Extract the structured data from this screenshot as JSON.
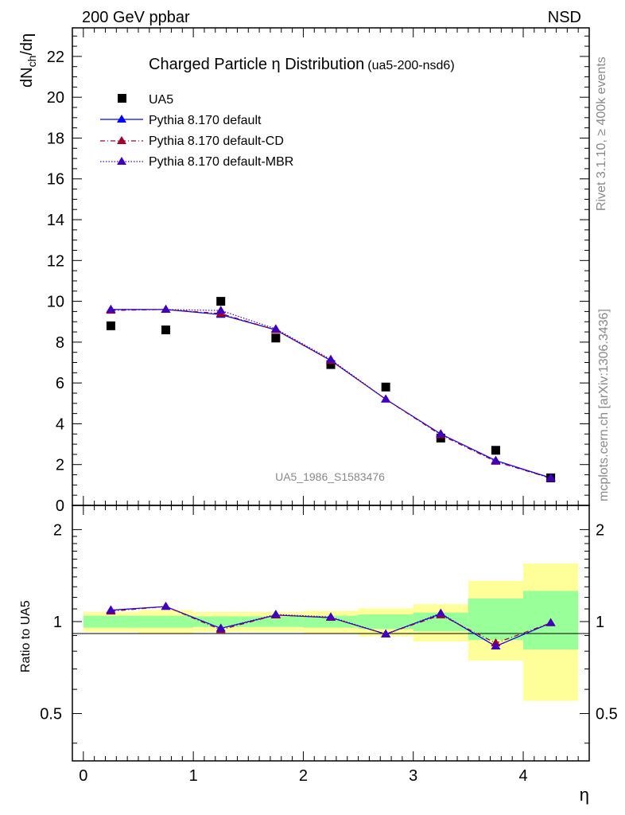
{
  "header": {
    "left": "200 GeV ppbar",
    "right": "NSD"
  },
  "side_labels": {
    "rivet": "Rivet 3.1.10, ≥ 400k events",
    "mcplots": "mcplots.cern.ch [arXiv:1306.3436]"
  },
  "chart_data": [
    {
      "type": "scatter",
      "title": "Charged Particle η Distribution",
      "title_tag": "(ua5-200-nsd6)",
      "xlabel": "η",
      "ylabel": "dN_ch/dη",
      "ylabel_main": "dN",
      "ylabel_sub": "ch",
      "ylabel_tail": "/dη",
      "xlim": [
        -0.1,
        4.6
      ],
      "ylim": [
        0,
        23.4
      ],
      "yticks": [
        0,
        2,
        4,
        6,
        8,
        10,
        12,
        14,
        16,
        18,
        20,
        22
      ],
      "ytick_labels": [
        "0",
        "2",
        "4",
        "6",
        "8",
        "10",
        "12",
        "14",
        "16",
        "18",
        "20",
        "22"
      ],
      "watermark": "UA5_1986_S1583476",
      "legend_position": "top-left",
      "x": [
        0.25,
        0.75,
        1.25,
        1.75,
        2.25,
        2.75,
        3.25,
        3.75,
        4.25
      ],
      "series": [
        {
          "name": "UA5",
          "style": "marker",
          "color": "#000000",
          "values": [
            8.8,
            8.6,
            10.0,
            8.2,
            6.9,
            5.8,
            3.3,
            2.7,
            1.35
          ]
        },
        {
          "name": "Pythia 8.170 default",
          "style": "solid",
          "color": "#0000ff",
          "values": [
            9.6,
            9.6,
            9.35,
            8.6,
            7.1,
            5.2,
            3.5,
            2.2,
            1.35
          ]
        },
        {
          "name": "Pythia 8.170 default-CD",
          "style": "dashdot",
          "color": "#a0002a",
          "values": [
            9.55,
            9.6,
            9.4,
            8.6,
            7.1,
            5.2,
            3.45,
            2.15,
            1.33
          ]
        },
        {
          "name": "Pythia 8.170 default-MBR",
          "style": "dotted",
          "color": "#4000c0",
          "values": [
            9.6,
            9.6,
            9.55,
            8.65,
            7.15,
            5.2,
            3.5,
            2.18,
            1.33
          ]
        }
      ]
    },
    {
      "type": "line",
      "ylabel": "Ratio to UA5",
      "xlabel": "η",
      "xlim": [
        -0.1,
        4.6
      ],
      "ylim": [
        0.35,
        2.4
      ],
      "yscale": "log",
      "xticks": [
        0,
        1,
        2,
        3,
        4
      ],
      "xtick_labels": [
        "0",
        "1",
        "2",
        "3",
        "4"
      ],
      "yticks": [
        0.5,
        1,
        2
      ],
      "ytick_labels": [
        "0.5",
        "1",
        "2"
      ],
      "bins": [
        [
          0,
          0.5
        ],
        [
          0.5,
          1
        ],
        [
          1,
          1.5
        ],
        [
          1.5,
          2
        ],
        [
          2,
          2.5
        ],
        [
          2.5,
          3
        ],
        [
          3,
          3.5
        ],
        [
          3.5,
          4
        ],
        [
          4,
          4.5
        ]
      ],
      "band_stat": [
        [
          0.955,
          1.045
        ],
        [
          0.955,
          1.045
        ],
        [
          0.96,
          1.04
        ],
        [
          0.96,
          1.04
        ],
        [
          0.955,
          1.045
        ],
        [
          0.945,
          1.055
        ],
        [
          0.93,
          1.07
        ],
        [
          0.87,
          1.19
        ],
        [
          0.81,
          1.26
        ]
      ],
      "band_total": [
        [
          0.925,
          1.075
        ],
        [
          0.91,
          1.09
        ],
        [
          0.925,
          1.075
        ],
        [
          0.925,
          1.075
        ],
        [
          0.915,
          1.085
        ],
        [
          0.895,
          1.105
        ],
        [
          0.86,
          1.14
        ],
        [
          0.745,
          1.36
        ],
        [
          0.55,
          1.55
        ]
      ],
      "band_colors": {
        "stat": "#99ff99",
        "total": "#ffff99"
      },
      "x": [
        0.25,
        0.75,
        1.25,
        1.75,
        2.25,
        2.75,
        3.25,
        3.75,
        4.25
      ],
      "series": [
        {
          "name": "Pythia 8.170 default",
          "style": "solid",
          "color": "#0000ff",
          "values": [
            1.09,
            1.12,
            0.95,
            1.05,
            1.03,
            0.91,
            1.06,
            0.83,
            0.99
          ]
        },
        {
          "name": "Pythia 8.170 default-CD",
          "style": "dashdot",
          "color": "#a0002a",
          "values": [
            1.08,
            1.12,
            0.94,
            1.05,
            1.03,
            0.91,
            1.05,
            0.85,
            0.99
          ]
        },
        {
          "name": "Pythia 8.170 default-MBR",
          "style": "dotted",
          "color": "#4000c0",
          "values": [
            1.09,
            1.12,
            0.95,
            1.055,
            1.035,
            0.91,
            1.065,
            0.83,
            0.99
          ]
        }
      ]
    }
  ]
}
